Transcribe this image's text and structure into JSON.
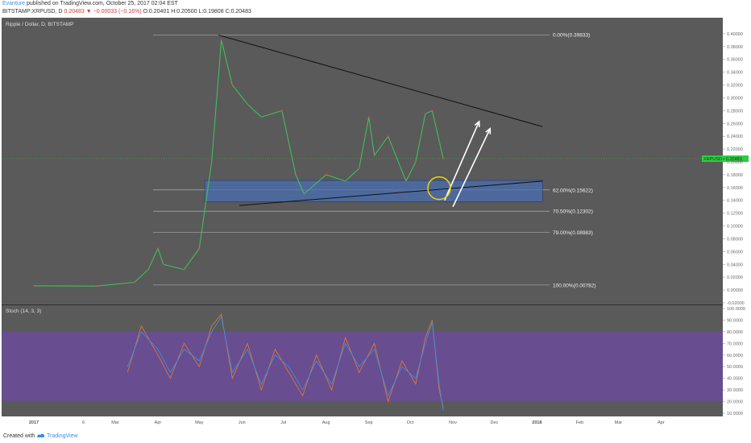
{
  "header": {
    "author": "Evanture",
    "published": "published on TradingView.com, October 25, 2017 02:04 EST",
    "symbol": "BITSTAMP:XRPUSD, D",
    "last": "0.20483",
    "change": "▼ −0.00033 (−0.16%)",
    "open": "O:0.20401",
    "high": "H:0.20500",
    "low": "L:0.19808",
    "close": "C:0.20483"
  },
  "footer": {
    "created": "Created with",
    "brand": "TradingView"
  },
  "chart_data": [
    {
      "type": "line",
      "title": "Ripple / Dollar, D, BITSTAMP",
      "price_tag": "XRPUSD • 0.20483",
      "ylim": [
        -0.02,
        0.42
      ],
      "y_ticks": [
        "0.40000",
        "0.38000",
        "0.36000",
        "0.34000",
        "0.32000",
        "0.30000",
        "0.28000",
        "0.26000",
        "0.24000",
        "0.22000",
        "0.20000",
        "0.18000",
        "0.16000",
        "0.14000",
        "0.12000",
        "0.10000",
        "0.08000",
        "0.06000",
        "0.04000",
        "0.02000",
        "0.00000",
        "-0.02000"
      ],
      "x_ticks": [
        "2017",
        "6",
        "Mar",
        "Apr",
        "May",
        "Jun",
        "Jul",
        "Aug",
        "Sep",
        "Oct",
        "Nov",
        "Dec",
        "2018",
        "Feb",
        "Mar",
        "Apr"
      ],
      "series": [
        {
          "x": [
            "2017-01-01",
            "2017-02-15",
            "2017-03-15",
            "2017-03-25",
            "2017-04-01",
            "2017-04-05",
            "2017-04-20",
            "2017-05-01",
            "2017-05-10",
            "2017-05-17",
            "2017-05-25",
            "2017-06-05",
            "2017-06-15",
            "2017-06-30",
            "2017-07-10",
            "2017-07-16",
            "2017-08-01",
            "2017-08-15",
            "2017-08-25",
            "2017-09-01",
            "2017-09-05",
            "2017-09-15",
            "2017-09-28",
            "2017-10-05",
            "2017-10-12",
            "2017-10-17",
            "2017-10-25"
          ],
          "y": [
            0.0065,
            0.0062,
            0.012,
            0.032,
            0.065,
            0.04,
            0.032,
            0.065,
            0.2,
            0.39,
            0.32,
            0.29,
            0.27,
            0.28,
            0.18,
            0.15,
            0.18,
            0.17,
            0.19,
            0.27,
            0.21,
            0.24,
            0.17,
            0.2,
            0.275,
            0.28,
            0.205
          ]
        }
      ],
      "fibonacci": [
        {
          "label": "0.00%(0.39833)",
          "value": 0.39833
        },
        {
          "label": "62.00%(0.15622)",
          "value": 0.15622
        },
        {
          "label": "70.50%(0.12302)",
          "value": 0.12302
        },
        {
          "label": "79.00%(0.08983)",
          "value": 0.08983
        },
        {
          "label": "100.00%(0.00782)",
          "value": 0.00782
        }
      ],
      "zone": [
        0.138,
        0.171
      ],
      "triangle_upper": [
        [
          "2017-05-15",
          0.398
        ],
        [
          "2018-01-05",
          0.255
        ]
      ],
      "triangle_lower": [
        [
          "2017-05-30",
          0.132
        ],
        [
          "2018-01-05",
          0.17
        ]
      ],
      "arrows": [
        [
          [
            "2017-10-26",
            0.14
          ],
          [
            "2017-11-20",
            0.263
          ]
        ],
        [
          [
            "2017-11-01",
            0.13
          ],
          [
            "2017-11-28",
            0.252
          ]
        ]
      ],
      "circle_at": [
        "2017-10-22",
        0.159
      ],
      "colors": {
        "background": "#5a5a5a",
        "zone": "#4a6fb3",
        "circle": "#f5d100",
        "price_tag": "#2ecc40"
      }
    },
    {
      "type": "line",
      "title": "Stoch (14, 3, 3)",
      "ylim": [
        10,
        100
      ],
      "y_ticks": [
        "100.0000",
        "90.0000",
        "80.0000",
        "70.0000",
        "60.0000",
        "50.0000",
        "40.0000",
        "30.0000",
        "20.0000",
        "10.0000"
      ],
      "band": [
        20,
        80
      ],
      "series": [
        {
          "x": [
            "2017-03-10",
            "2017-03-20",
            "2017-04-01",
            "2017-04-10",
            "2017-04-20",
            "2017-05-01",
            "2017-05-10",
            "2017-05-17",
            "2017-05-25",
            "2017-06-05",
            "2017-06-15",
            "2017-06-25",
            "2017-07-05",
            "2017-07-15",
            "2017-07-25",
            "2017-08-05",
            "2017-08-15",
            "2017-08-25",
            "2017-09-05",
            "2017-09-15",
            "2017-09-25",
            "2017-10-05",
            "2017-10-12",
            "2017-10-17",
            "2017-10-22",
            "2017-10-25"
          ],
          "y": [
            45,
            85,
            60,
            40,
            70,
            50,
            85,
            95,
            40,
            70,
            30,
            65,
            45,
            25,
            60,
            30,
            75,
            45,
            70,
            20,
            55,
            35,
            75,
            90,
            30,
            15
          ]
        },
        {
          "x": [
            "2017-03-10",
            "2017-03-20",
            "2017-04-01",
            "2017-04-10",
            "2017-04-20",
            "2017-05-01",
            "2017-05-10",
            "2017-05-17",
            "2017-05-25",
            "2017-06-05",
            "2017-06-15",
            "2017-06-25",
            "2017-07-05",
            "2017-07-15",
            "2017-07-25",
            "2017-08-05",
            "2017-08-15",
            "2017-08-25",
            "2017-09-05",
            "2017-09-15",
            "2017-09-25",
            "2017-10-05",
            "2017-10-12",
            "2017-10-17",
            "2017-10-22",
            "2017-10-25"
          ],
          "y": [
            50,
            80,
            65,
            45,
            65,
            55,
            80,
            93,
            45,
            65,
            35,
            60,
            50,
            30,
            55,
            35,
            70,
            50,
            65,
            25,
            50,
            40,
            70,
            88,
            35,
            12
          ]
        }
      ],
      "colors": {
        "band": "#6b4b9a",
        "k": "#e0772b",
        "d": "#3a8ee6"
      }
    }
  ]
}
